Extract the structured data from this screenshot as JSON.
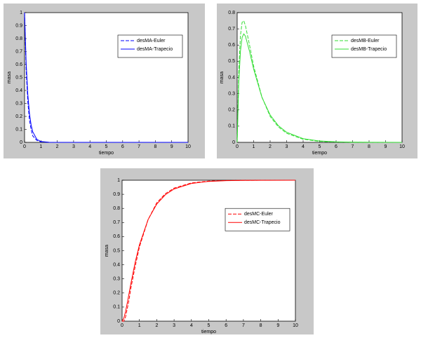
{
  "chart_data": [
    {
      "type": "line",
      "xlabel": "tiempo",
      "ylabel": "masa",
      "x": [
        0,
        0.1,
        0.2,
        0.3,
        0.4,
        0.5,
        0.75,
        1,
        1.5,
        2,
        2.5,
        3,
        4,
        5,
        6,
        7,
        8,
        10
      ],
      "xlim": [
        0,
        10
      ],
      "xticks": [
        0,
        1,
        2,
        3,
        4,
        5,
        6,
        7,
        8,
        9,
        10
      ],
      "ylim": [
        0,
        1
      ],
      "yticks": [
        0,
        0.1,
        0.2,
        0.3,
        0.4,
        0.5,
        0.6,
        0.7,
        0.8,
        0.9,
        1
      ],
      "legend": "upper right",
      "series": [
        {
          "name": "desMA-Euler",
          "color": "#0000ff",
          "linestyle": "dashed",
          "values": [
            1,
            0.55,
            0.31,
            0.17,
            0.1,
            0.05,
            0.015,
            0.004,
            0.0003,
            0,
            0,
            0,
            0,
            0,
            0,
            0,
            0,
            0
          ]
        },
        {
          "name": "desMA-Trapecio",
          "color": "#0000ff",
          "linestyle": "solid",
          "values": [
            1,
            0.6065,
            0.3679,
            0.2231,
            0.1353,
            0.0821,
            0.0235,
            0.0067,
            0.0006,
            0,
            0,
            0,
            0,
            0,
            0,
            0,
            0,
            0
          ]
        }
      ]
    },
    {
      "type": "line",
      "xlabel": "tiempo",
      "ylabel": "masa",
      "x": [
        0,
        0.1,
        0.2,
        0.3,
        0.4,
        0.5,
        0.75,
        1,
        1.5,
        2,
        2.5,
        3,
        4,
        5,
        6,
        7,
        8,
        10
      ],
      "xlim": [
        0,
        10
      ],
      "xticks": [
        0,
        1,
        2,
        3,
        4,
        5,
        6,
        7,
        8,
        9,
        10
      ],
      "ylim": [
        0,
        0.8
      ],
      "yticks": [
        0,
        0.1,
        0.2,
        0.3,
        0.4,
        0.5,
        0.6,
        0.7,
        0.8
      ],
      "legend": "upper right",
      "series": [
        {
          "name": "desMB-Euler",
          "color": "#33dd33",
          "linestyle": "dashed",
          "values": [
            0,
            0.45,
            0.66,
            0.74,
            0.75,
            0.72,
            0.6,
            0.47,
            0.28,
            0.16,
            0.095,
            0.056,
            0.019,
            0.006,
            0.002,
            0.0007,
            0.0002,
            0
          ]
        },
        {
          "name": "desMB-Trapecio",
          "color": "#33dd33",
          "linestyle": "solid",
          "values": [
            0,
            0.3729,
            0.5635,
            0.6471,
            0.6688,
            0.6555,
            0.5611,
            0.4515,
            0.2782,
            0.1691,
            0.1026,
            0.0622,
            0.0229,
            0.0084,
            0.0031,
            0.0011,
            0.0004,
            0
          ]
        }
      ]
    },
    {
      "type": "line",
      "xlabel": "tiempo",
      "ylabel": "masa",
      "x": [
        0,
        0.1,
        0.2,
        0.3,
        0.4,
        0.5,
        0.75,
        1,
        1.5,
        2,
        2.5,
        3,
        4,
        5,
        6,
        7,
        8,
        10
      ],
      "xlim": [
        0,
        10
      ],
      "xticks": [
        0,
        1,
        2,
        3,
        4,
        5,
        6,
        7,
        8,
        9,
        10
      ],
      "ylim": [
        0,
        1
      ],
      "yticks": [
        0,
        0.1,
        0.2,
        0.3,
        0.4,
        0.5,
        0.6,
        0.7,
        0.8,
        0.9,
        1
      ],
      "legend": "center right",
      "series": [
        {
          "name": "desMC-Euler",
          "color": "#ff0000",
          "linestyle": "dashed",
          "values": [
            0,
            0,
            0.03,
            0.09,
            0.15,
            0.23,
            0.385,
            0.526,
            0.72,
            0.84,
            0.905,
            0.944,
            0.981,
            0.994,
            0.998,
            0.9993,
            0.9998,
            1
          ]
        },
        {
          "name": "desMC-Trapecio",
          "color": "#ff0000",
          "linestyle": "solid",
          "values": [
            0,
            0.0206,
            0.0686,
            0.1298,
            0.1959,
            0.2624,
            0.4154,
            0.5418,
            0.7212,
            0.8309,
            0.8974,
            0.9378,
            0.9771,
            0.9916,
            0.9969,
            0.9989,
            0.9996,
            1
          ]
        }
      ]
    }
  ]
}
